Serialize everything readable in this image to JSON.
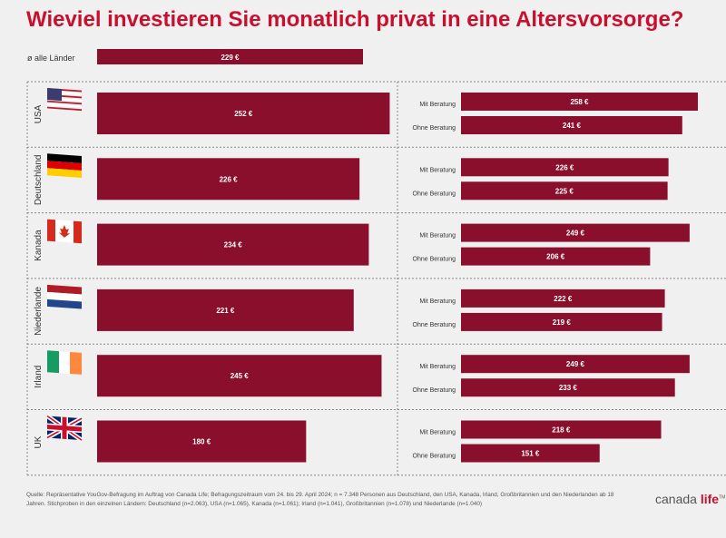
{
  "title": "Wieviel investieren Sie monatlich privat in eine Altersvorsorge?",
  "source": "Quelle: Repräsentative YouGov-Befragung im Auftrag von Canada Life; Befragungszeitraum vom 24. bis 29. April 2024; n = 7.348 Personen aus Deutschland, den USA, Kanada, Irland, Großbritannien und den Niederlanden ab 18 Jahren. Stichproben in den einzelnen Ländern: Deutschland (n=2.063), USA (n=1.065), Kanada (n=1.061); Irland (n=1.041), Großbritannien (n=1.078) und Niederlande (n=1.040)",
  "logo": {
    "part1": "canada",
    "part2": "life",
    "mark": "TM"
  },
  "colors": {
    "bar": "#8a0f2c",
    "title": "#c8102e",
    "background": "#f0f0f0",
    "text": "#333333",
    "divider": "#888888"
  },
  "chart_data": {
    "type": "bar",
    "orientation": "horizontal",
    "unit": "€",
    "overall": {
      "label": "ø alle Länder",
      "value": 229,
      "value_label": "229 €"
    },
    "series_labels": [
      "Mit Beratung",
      "Ohne Beratung"
    ],
    "countries": [
      {
        "name": "USA",
        "flag": "usa-flag-icon",
        "total": 252,
        "total_label": "252 €",
        "mit": 258,
        "mit_label": "258 €",
        "ohne": 241,
        "ohne_label": "241 €"
      },
      {
        "name": "Deutschland",
        "flag": "germany-flag-icon",
        "total": 226,
        "total_label": "226 €",
        "mit": 226,
        "mit_label": "226 €",
        "ohne": 225,
        "ohne_label": "225 €"
      },
      {
        "name": "Kanada",
        "flag": "canada-flag-icon",
        "total": 234,
        "total_label": "234 €",
        "mit": 249,
        "mit_label": "249 €",
        "ohne": 206,
        "ohne_label": "206 €"
      },
      {
        "name": "Niederlande",
        "flag": "netherlands-flag-icon",
        "total": 221,
        "total_label": "221 €",
        "mit": 222,
        "mit_label": "222 €",
        "ohne": 219,
        "ohne_label": "219 €"
      },
      {
        "name": "Irland",
        "flag": "ireland-flag-icon",
        "total": 245,
        "total_label": "245 €",
        "mit": 249,
        "mit_label": "249 €",
        "ohne": 233,
        "ohne_label": "233 €"
      },
      {
        "name": "UK",
        "flag": "uk-flag-icon",
        "total": 180,
        "total_label": "180 €",
        "mit": 218,
        "mit_label": "218 €",
        "ohne": 151,
        "ohne_label": "151 €"
      }
    ]
  }
}
